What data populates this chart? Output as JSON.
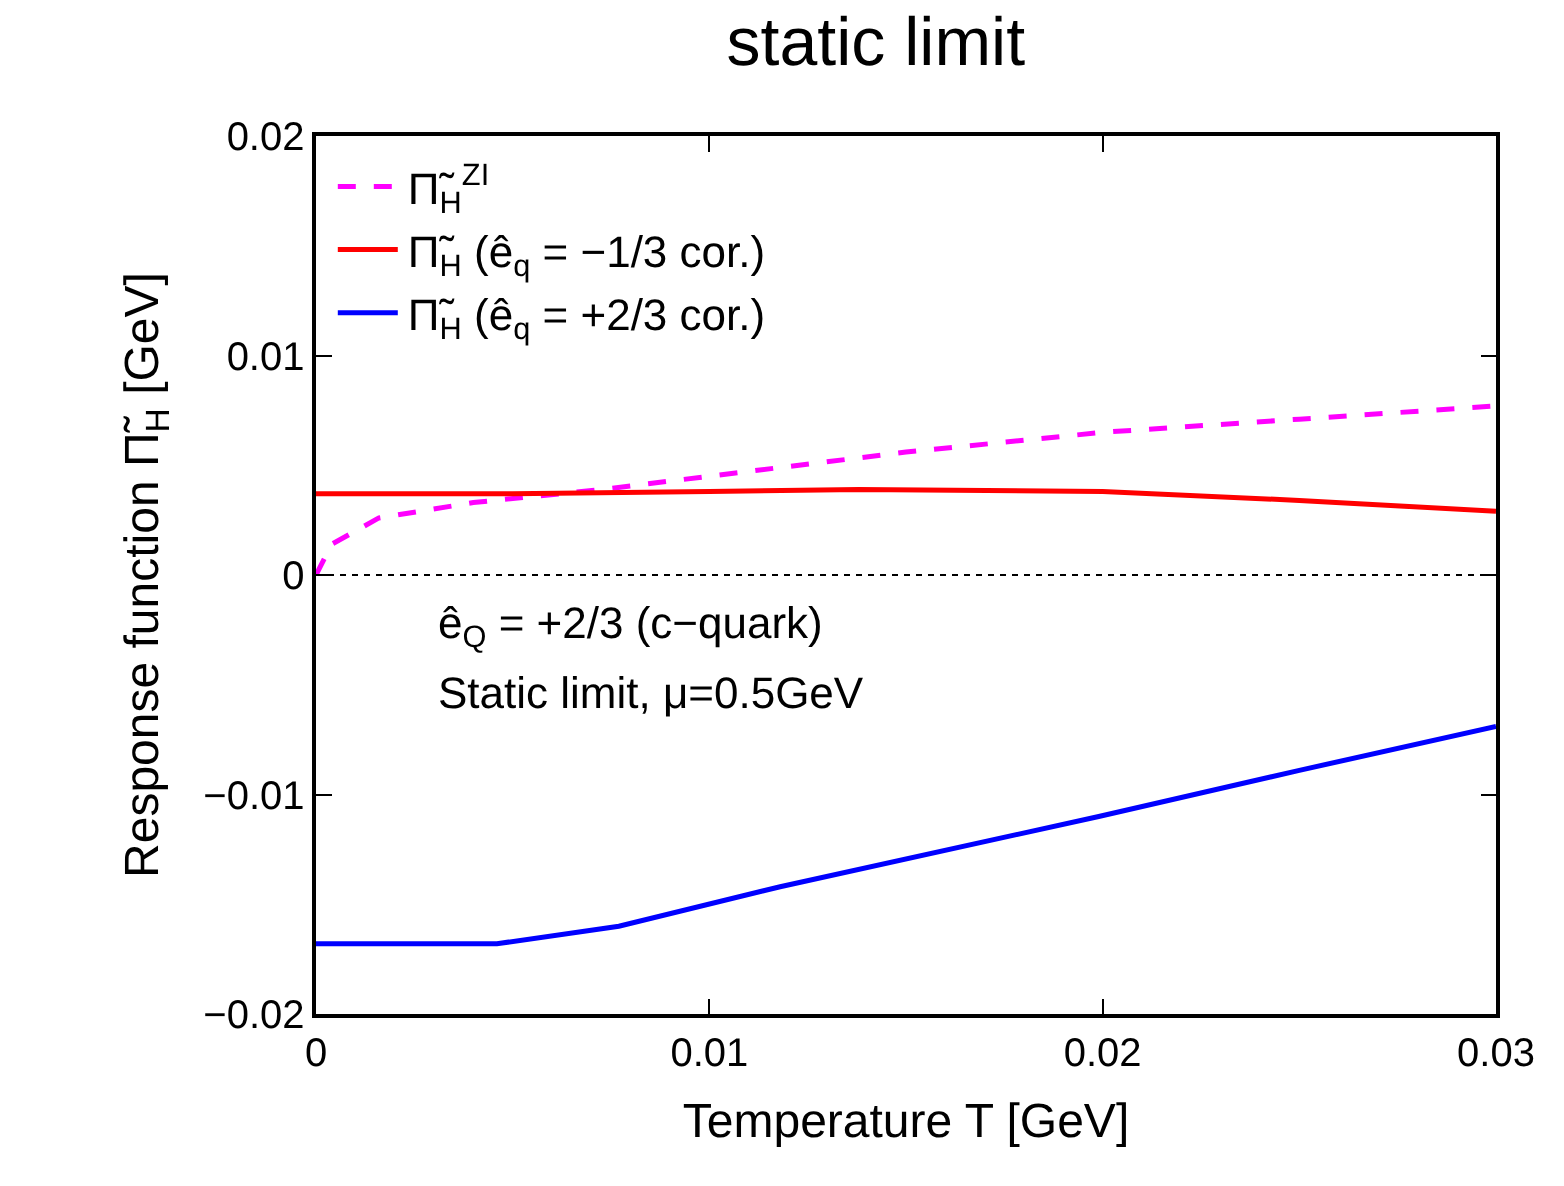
{
  "chart_data": {
    "type": "line",
    "title": "static limit",
    "xlabel": "Temperature T [GeV]",
    "ylabel": "Response function Π̃$_{H}$ [GeV]",
    "xlim": [
      0,
      0.03
    ],
    "xticks": [
      0,
      0.01,
      0.02,
      0.03
    ],
    "ylim": [
      -0.02,
      0.02
    ],
    "yticks": [
      {
        "value": -0.02,
        "label": "−0.02"
      },
      {
        "value": -0.01,
        "label": "−0.01"
      },
      0,
      0.01,
      0.02
    ],
    "legend": "top left",
    "series": [
      {
        "name": "Π̃$_{H}$$^{ZI}$",
        "color": "#ff00ff",
        "line_style": "dashed",
        "x": [
          0,
          0.0004,
          0.0016,
          0.004,
          0.0073,
          0.01,
          0.015,
          0.02,
          0.025,
          0.03
        ],
        "values": [
          0,
          0.0014,
          0.0026,
          0.0033,
          0.0039,
          0.0045,
          0.0056,
          0.0065,
          0.0071,
          0.0077
        ]
      },
      {
        "name": "Π̃$_{H}$ (ê$_{q}$ = −1/3 cor.)",
        "color": "#ff0000",
        "line_style": "solid",
        "x": [
          0,
          0.005,
          0.01,
          0.0138,
          0.02,
          0.025,
          0.03
        ],
        "values": [
          0.0037,
          0.0037,
          0.0038,
          0.0039,
          0.0038,
          0.0034,
          0.0029
        ]
      },
      {
        "name": "Π̃$_{H}$ (ê$_{q}$ = +2/3 cor.)",
        "color": "#0000ff",
        "line_style": "solid",
        "x": [
          0,
          0.0046,
          0.0077,
          0.0118,
          0.0199,
          0.025,
          0.03
        ],
        "values": [
          -0.0168,
          -0.0168,
          -0.016,
          -0.0142,
          -0.011,
          -0.0089,
          -0.0069
        ]
      }
    ],
    "ref_lines": [
      {
        "axis": "y",
        "value": 0,
        "color": "#000000",
        "line_style": "dotted"
      }
    ],
    "annotations": [
      "ê$_{Q}$ = +2/3 (c−quark)",
      "Static limit, μ=0.5GeV"
    ]
  }
}
